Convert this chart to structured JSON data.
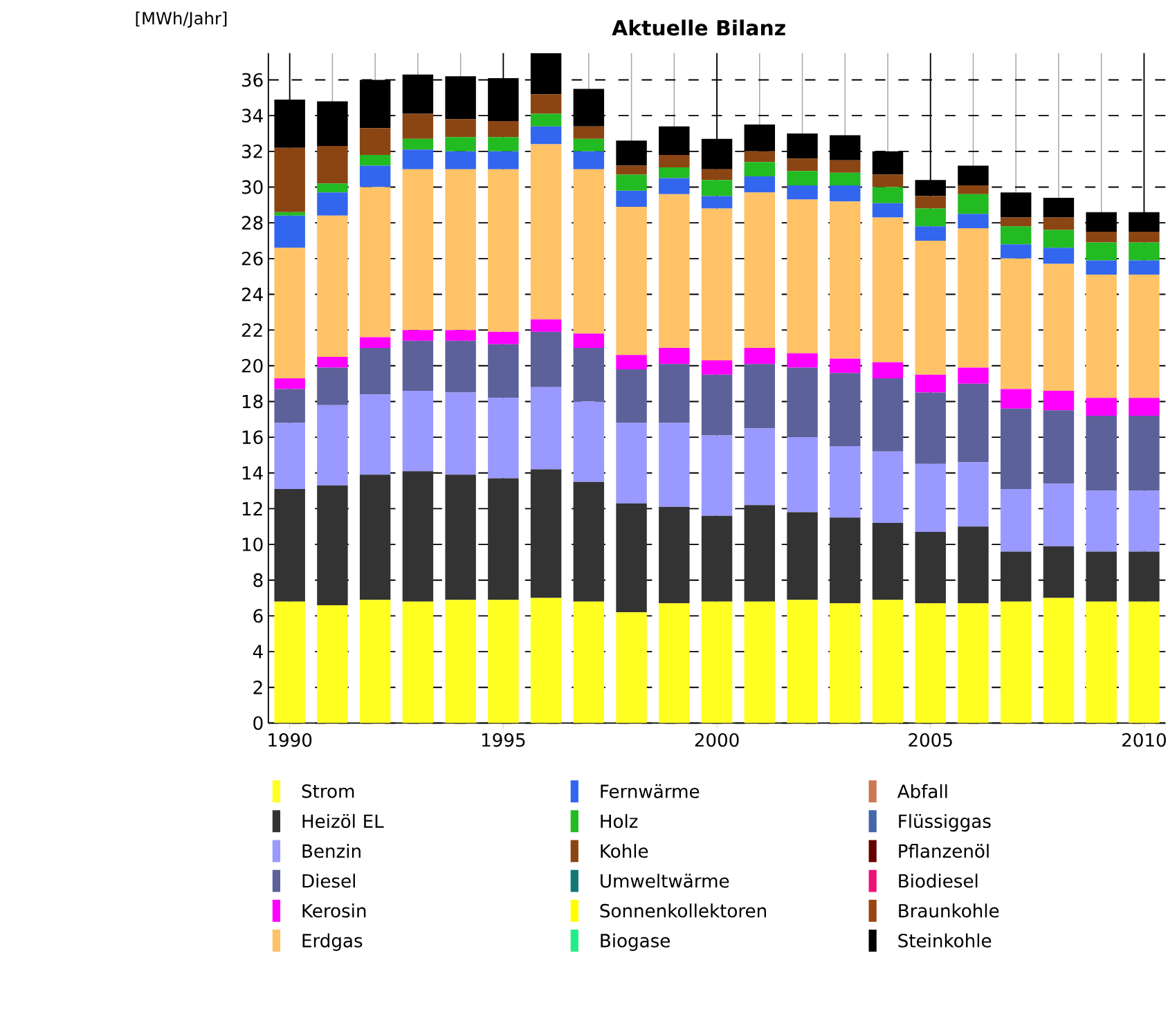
{
  "chart_data": {
    "type": "bar",
    "stacked": true,
    "title": "Aktuelle Bilanz",
    "ylabel": "[MWh/Jahr]",
    "x": [
      1990,
      1991,
      1992,
      1993,
      1994,
      1995,
      1996,
      1997,
      1998,
      1999,
      2000,
      2001,
      2002,
      2003,
      2004,
      2005,
      2006,
      2007,
      2008,
      2009,
      2010
    ],
    "xlim": [
      1989.5,
      2010.5
    ],
    "xticks": [
      1990,
      1995,
      2000,
      2005,
      2010
    ],
    "ylim": [
      0,
      37.5
    ],
    "yticks": [
      0,
      2,
      4,
      6,
      8,
      10,
      12,
      14,
      16,
      18,
      20,
      22,
      24,
      26,
      28,
      30,
      32,
      34,
      36
    ],
    "grid": true,
    "legend": "bottom",
    "series": [
      {
        "name": "Strom",
        "color": "#ffff22",
        "values": [
          6.8,
          6.6,
          6.9,
          6.8,
          6.9,
          6.9,
          7.0,
          6.8,
          6.2,
          6.7,
          6.8,
          6.8,
          6.9,
          6.7,
          6.9,
          6.7,
          6.7,
          6.8,
          7.0,
          6.8,
          6.8
        ]
      },
      {
        "name": "Heizöl EL",
        "color": "#333333",
        "values": [
          6.3,
          6.7,
          7.0,
          7.3,
          7.0,
          6.8,
          7.2,
          6.7,
          6.1,
          5.4,
          4.8,
          5.4,
          4.9,
          4.8,
          4.3,
          4.0,
          4.3,
          2.8,
          2.9,
          2.8,
          2.8
        ]
      },
      {
        "name": "Benzin",
        "color": "#9999ff",
        "values": [
          3.7,
          4.5,
          4.5,
          4.5,
          4.6,
          4.5,
          4.6,
          4.5,
          4.5,
          4.7,
          4.5,
          4.3,
          4.2,
          4.0,
          4.0,
          3.8,
          3.6,
          3.5,
          3.5,
          3.4,
          3.4
        ]
      },
      {
        "name": "Diesel",
        "color": "#5c6199",
        "values": [
          1.9,
          2.1,
          2.6,
          2.8,
          2.9,
          3.0,
          3.1,
          3.0,
          3.0,
          3.3,
          3.4,
          3.6,
          3.9,
          4.1,
          4.1,
          4.0,
          4.4,
          4.5,
          4.1,
          4.2,
          4.2
        ]
      },
      {
        "name": "Kerosin",
        "color": "#ff00ff",
        "values": [
          0.6,
          0.6,
          0.6,
          0.6,
          0.6,
          0.7,
          0.7,
          0.8,
          0.8,
          0.9,
          0.8,
          0.9,
          0.8,
          0.8,
          0.9,
          1.0,
          0.9,
          1.1,
          1.1,
          1.0,
          1.0
        ]
      },
      {
        "name": "Erdgas",
        "color": "#ffc266",
        "values": [
          7.3,
          7.9,
          8.4,
          9.0,
          9.0,
          9.1,
          9.8,
          9.2,
          8.3,
          8.6,
          8.5,
          8.7,
          8.6,
          8.8,
          8.1,
          7.5,
          7.8,
          7.3,
          7.1,
          6.9,
          6.9
        ]
      },
      {
        "name": "Fernwärme",
        "color": "#3366ee",
        "values": [
          1.8,
          1.3,
          1.2,
          1.1,
          1.0,
          1.0,
          1.0,
          1.0,
          0.9,
          0.9,
          0.7,
          0.9,
          0.8,
          0.9,
          0.8,
          0.8,
          0.8,
          0.8,
          0.9,
          0.8,
          0.8
        ]
      },
      {
        "name": "Holz",
        "color": "#22bb22",
        "values": [
          0.2,
          0.5,
          0.6,
          0.6,
          0.8,
          0.8,
          0.7,
          0.7,
          0.9,
          0.6,
          0.9,
          0.8,
          0.8,
          0.7,
          0.9,
          1.0,
          1.1,
          1.0,
          1.0,
          1.0,
          1.0
        ]
      },
      {
        "name": "Kohle",
        "color": "#8b4513",
        "values": [
          3.6,
          2.1,
          1.5,
          1.4,
          1.0,
          0.9,
          1.1,
          0.7,
          0.5,
          0.7,
          0.6,
          0.6,
          0.7,
          0.7,
          0.7,
          0.7,
          0.5,
          0.5,
          0.7,
          0.6,
          0.6
        ]
      },
      {
        "name": "Umweltwärme",
        "color": "#117777",
        "values": [
          0,
          0,
          0,
          0,
          0,
          0,
          0,
          0,
          0,
          0,
          0,
          0,
          0,
          0,
          0,
          0,
          0,
          0,
          0,
          0,
          0
        ]
      },
      {
        "name": "Sonnenkollektoren",
        "color": "#ffff00",
        "values": [
          0,
          0,
          0,
          0,
          0,
          0,
          0,
          0,
          0,
          0,
          0,
          0,
          0,
          0,
          0,
          0,
          0,
          0,
          0,
          0,
          0
        ]
      },
      {
        "name": "Biogase",
        "color": "#22ee88",
        "values": [
          0,
          0,
          0,
          0,
          0,
          0,
          0,
          0,
          0,
          0,
          0,
          0,
          0,
          0,
          0,
          0,
          0,
          0,
          0,
          0,
          0
        ]
      },
      {
        "name": "Abfall",
        "color": "#cc7755",
        "values": [
          0,
          0,
          0,
          0,
          0,
          0,
          0,
          0,
          0,
          0,
          0,
          0,
          0,
          0,
          0,
          0,
          0,
          0,
          0,
          0,
          0
        ]
      },
      {
        "name": "Flüssiggas",
        "color": "#4466aa",
        "values": [
          0,
          0,
          0,
          0,
          0,
          0,
          0,
          0,
          0,
          0,
          0,
          0,
          0,
          0,
          0,
          0,
          0,
          0,
          0,
          0,
          0
        ]
      },
      {
        "name": "Pflanzenöl",
        "color": "#660000",
        "values": [
          0,
          0,
          0,
          0,
          0,
          0,
          0,
          0,
          0,
          0,
          0,
          0,
          0,
          0,
          0,
          0,
          0,
          0,
          0,
          0,
          0
        ]
      },
      {
        "name": "Biodiesel",
        "color": "#ee1177",
        "values": [
          0,
          0,
          0,
          0,
          0,
          0,
          0,
          0,
          0,
          0,
          0,
          0,
          0,
          0,
          0,
          0,
          0,
          0,
          0,
          0,
          0
        ]
      },
      {
        "name": "Braunkohle",
        "color": "#994411",
        "values": [
          0,
          0,
          0,
          0,
          0,
          0,
          0,
          0,
          0,
          0,
          0,
          0,
          0,
          0,
          0,
          0,
          0,
          0,
          0,
          0,
          0
        ]
      },
      {
        "name": "Steinkohle",
        "color": "#000000",
        "values": [
          2.7,
          2.5,
          2.7,
          2.2,
          2.4,
          2.4,
          2.3,
          2.1,
          1.4,
          1.6,
          1.7,
          1.5,
          1.4,
          1.4,
          1.3,
          0.9,
          1.1,
          1.4,
          1.1,
          1.1,
          1.1
        ]
      }
    ]
  }
}
